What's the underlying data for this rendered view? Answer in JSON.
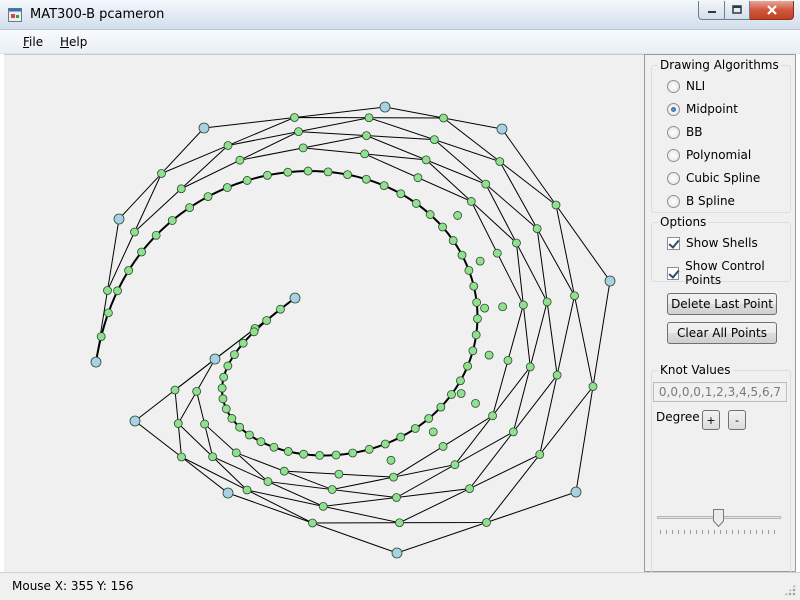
{
  "window": {
    "title": "MAT300-B  pcameron"
  },
  "menu": [
    {
      "id": "file",
      "accel": "F",
      "rest": "ile"
    },
    {
      "id": "help",
      "accel": "H",
      "rest": "elp"
    }
  ],
  "drawing_algorithms": {
    "title": "Drawing Algorithms",
    "options": [
      "NLI",
      "Midpoint",
      "BB",
      "Polynomial",
      "Cubic Spline",
      "B Spline"
    ],
    "selected": "Midpoint"
  },
  "options": {
    "title": "Options",
    "show_shells": {
      "label": "Show Shells",
      "checked": true
    },
    "show_control_points": {
      "label": "Show Control Points",
      "checked": true
    }
  },
  "buttons": {
    "delete_last_point": "Delete Last Point",
    "clear_all_points": "Clear All Points"
  },
  "knot_values": {
    "title": "Knot Values",
    "value": "0,0,0,0,1,2,3,4,5,6,7"
  },
  "degree": {
    "label": "Degree",
    "plus": "+",
    "minus": "-"
  },
  "slider": {
    "value": 0.5
  },
  "status": {
    "mouse_x": "Mouse X: 355",
    "mouse_y": "Y: 156"
  },
  "canvas": {
    "colors": {
      "control_point": "#a8d0e6",
      "shell_point": "#90e090",
      "line": "#000000"
    }
  }
}
